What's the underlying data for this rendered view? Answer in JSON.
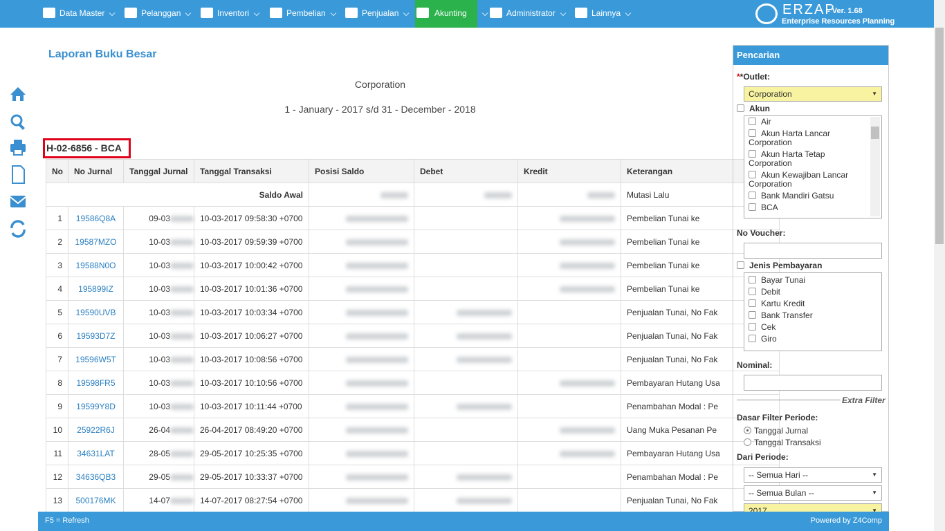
{
  "nav": {
    "items": [
      "Data Master",
      "Pelanggan",
      "Inventori",
      "Pembelian",
      "Penjualan",
      "Akunting",
      "Administrator",
      "Lainnya"
    ],
    "logo": "ERZAP",
    "version": "- Ver. 1.68",
    "tagline": "Enterprise Resources Planning"
  },
  "report": {
    "title": "Laporan Buku Besar",
    "company": "Corporation",
    "period": "1 - January - 2017 s/d 31 - December - 2018",
    "account": "H-02-6856 - BCA"
  },
  "table": {
    "headers": [
      "No",
      "No Jurnal",
      "Tanggal Jurnal",
      "Tanggal Transaksi",
      "Posisi Saldo",
      "Debet",
      "Kredit",
      "Keterangan"
    ],
    "opening": {
      "label": "Saldo Awal",
      "note": "Mutasi Lalu"
    },
    "rows": [
      [
        "1",
        "19586Q8A",
        "09-03",
        "10-03-2017 09:58:30 +0700",
        "Pembelian Tunai ke"
      ],
      [
        "2",
        "19587MZO",
        "10-03",
        "10-03-2017 09:59:39 +0700",
        "Pembelian Tunai ke"
      ],
      [
        "3",
        "19588N0O",
        "10-03",
        "10-03-2017 10:00:42 +0700",
        "Pembelian Tunai ke"
      ],
      [
        "4",
        "195899IZ",
        "10-03",
        "10-03-2017 10:01:36 +0700",
        "Pembelian Tunai ke"
      ],
      [
        "5",
        "19590UVB",
        "10-03",
        "10-03-2017 10:03:34 +0700",
        "Penjualan Tunai, No Fak"
      ],
      [
        "6",
        "19593D7Z",
        "10-03",
        "10-03-2017 10:06:27 +0700",
        "Penjualan Tunai, No Fak"
      ],
      [
        "7",
        "19596W5T",
        "10-03",
        "10-03-2017 10:08:56 +0700",
        "Penjualan Tunai, No Fak"
      ],
      [
        "8",
        "19598FR5",
        "10-03",
        "10-03-2017 10:10:56 +0700",
        "Pembayaran Hutang Usa"
      ],
      [
        "9",
        "19599Y8D",
        "10-03",
        "10-03-2017 10:11:44 +0700",
        "Penambahan Modal : Pe"
      ],
      [
        "10",
        "25922R6J",
        "26-04",
        "26-04-2017 08:49:20 +0700",
        "Uang Muka Pesanan Pe"
      ],
      [
        "11",
        "34631LAT",
        "28-05",
        "29-05-2017 10:25:35 +0700",
        "Pembayaran Hutang Usa"
      ],
      [
        "12",
        "34636QB3",
        "29-05",
        "29-05-2017 10:33:37 +0700",
        "Penambahan Modal : Pe"
      ],
      [
        "13",
        "500176MK",
        "14-07",
        "14-07-2017 08:27:54 +0700",
        "Penjualan Tunai, No Fak"
      ]
    ]
  },
  "sidebar": {
    "title": "Pencarian",
    "outlet_label": "*Outlet:",
    "outlet": "Corporation",
    "akun_label": "Akun",
    "akun": [
      "Air",
      "Akun Harta Lancar Corporation",
      "Akun Harta Tetap Corporation",
      "Akun Kewajiban Lancar Corporation",
      "Bank Mandiri Gatsu",
      "BCA"
    ],
    "voucher_label": "No Voucher:",
    "jenis_label": "Jenis Pembayaran",
    "jenis": [
      "Bayar Tunai",
      "Debit",
      "Kartu Kredit",
      "Bank Transfer",
      "Cek",
      "Giro"
    ],
    "nominal_label": "Nominal:",
    "extra": "Extra Filter",
    "dasar_label": "Dasar Filter Periode:",
    "dasar": [
      "Tanggal Jurnal",
      "Tanggal Transaksi"
    ],
    "dari_label": "Dari Periode:",
    "selects": [
      "-- Semua Hari --",
      "-- Semua Bulan --",
      "2017"
    ]
  },
  "footer": {
    "left": "F5 = Refresh",
    "right": "Powered by Z4Comp"
  }
}
